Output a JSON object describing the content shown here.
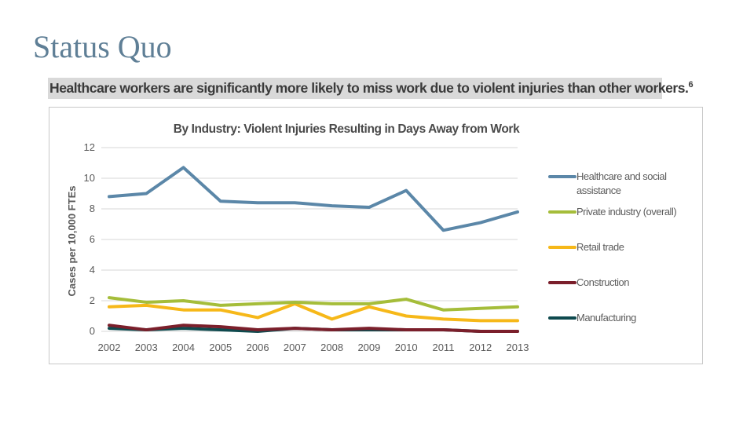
{
  "slide": {
    "title": "Status Quo",
    "banner": "Healthcare workers are significantly more likely to miss work due to violent injuries than other workers.",
    "banner_footnote": "6"
  },
  "chart_data": {
    "type": "line",
    "title": "By Industry: Violent Injuries Resulting in Days Away from Work",
    "xlabel": "",
    "ylabel": "Cases per 10,000 FTEs",
    "ylim": [
      0,
      12
    ],
    "yticks": [
      "0",
      "2",
      "4",
      "6",
      "8",
      "10",
      "12"
    ],
    "grid": true,
    "legend_position": "right",
    "categories": [
      "2002",
      "2003",
      "2004",
      "2005",
      "2006",
      "2007",
      "2008",
      "2009",
      "2010",
      "2011",
      "2012",
      "2013"
    ],
    "series": [
      {
        "name": "Healthcare and social assistance",
        "color": "#5b87a8",
        "values": [
          8.8,
          9.0,
          10.7,
          8.5,
          8.4,
          8.4,
          8.2,
          8.1,
          9.2,
          6.6,
          7.1,
          7.8
        ]
      },
      {
        "name": "Private industry (overall)",
        "color": "#a5bd3a",
        "values": [
          2.2,
          1.9,
          2.0,
          1.7,
          1.8,
          1.9,
          1.8,
          1.8,
          2.1,
          1.4,
          1.5,
          1.6
        ]
      },
      {
        "name": "Retail trade",
        "color": "#f6b819",
        "values": [
          1.6,
          1.7,
          1.4,
          1.4,
          0.9,
          1.8,
          0.8,
          1.6,
          1.0,
          0.8,
          0.7,
          0.7
        ]
      },
      {
        "name": "Construction",
        "color": "#7b1f2b",
        "values": [
          0.4,
          0.1,
          0.4,
          0.3,
          0.1,
          0.2,
          0.1,
          0.2,
          0.1,
          0.1,
          0.0,
          0.0
        ]
      },
      {
        "name": "Manufacturing",
        "color": "#0f4a4e",
        "values": [
          0.2,
          0.1,
          0.2,
          0.1,
          0.0,
          0.2,
          0.1,
          0.1,
          0.1,
          0.1,
          0.0,
          0.0
        ]
      }
    ]
  }
}
